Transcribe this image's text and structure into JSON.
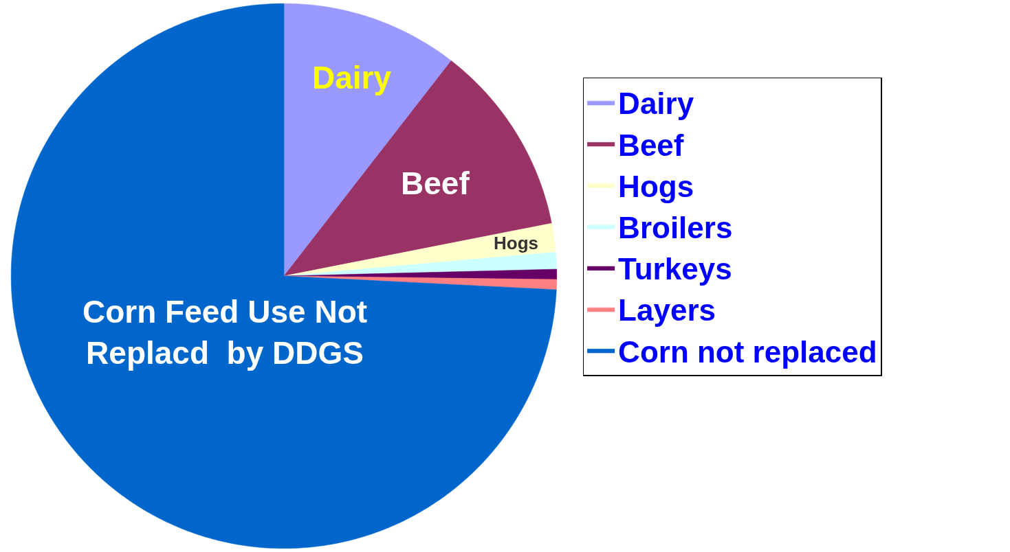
{
  "chart_data": {
    "type": "pie",
    "categories": [
      "Dairy",
      "Beef",
      "Hogs",
      "Broilers",
      "Turkeys",
      "Layers",
      "Corn not replaced"
    ],
    "values": [
      10.5,
      11.4,
      1.7,
      1.0,
      0.6,
      0.6,
      74.2
    ],
    "colors": [
      "#9999ff",
      "#993366",
      "#ffffcc",
      "#ccffff",
      "#660066",
      "#ff8080",
      "#0066cc"
    ],
    "annotations": [
      {
        "text": "Dairy",
        "x": "Dairy"
      },
      {
        "text": "Beef",
        "x": "Beef"
      },
      {
        "text": "Hogs",
        "x": "Hogs"
      },
      {
        "text": "Corn Feed Use Not\nReplacd  by DDGS",
        "x": "Corn not replaced"
      }
    ],
    "legend": "right"
  }
}
